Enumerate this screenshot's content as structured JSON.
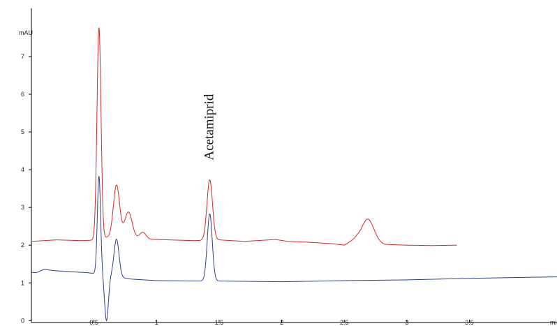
{
  "chart_data": {
    "type": "line",
    "title": "",
    "xlabel": "",
    "ylabel": "",
    "y_unit_label": "mAU",
    "x_unit_label": "mi",
    "xlim": [
      0,
      4.2
    ],
    "ylim": [
      -0.05,
      8.35
    ],
    "x_ticks": [
      {
        "value": 0.5,
        "label": "0.5"
      },
      {
        "value": 1,
        "label": "1"
      },
      {
        "value": 1.5,
        "label": "1.5"
      },
      {
        "value": 2,
        "label": "2"
      },
      {
        "value": 2.5,
        "label": "2.5"
      },
      {
        "value": 3,
        "label": "3"
      },
      {
        "value": 3.5,
        "label": "3.5"
      }
    ],
    "y_ticks": [
      {
        "value": 0,
        "label": "0"
      },
      {
        "value": 1,
        "label": "1"
      },
      {
        "value": 2,
        "label": "2"
      },
      {
        "value": 3,
        "label": "3"
      },
      {
        "value": 4,
        "label": "4"
      },
      {
        "value": 5,
        "label": "5"
      },
      {
        "value": 6,
        "label": "6"
      },
      {
        "value": 7,
        "label": "7"
      }
    ],
    "grid": false,
    "annotations": [
      {
        "text": "Acetamiprid",
        "x": 1.42,
        "y": 4.25,
        "rotation": -90
      }
    ],
    "series": [
      {
        "color": "#d42a2a",
        "baseline": [
          [
            0,
            2.1
          ],
          [
            0.1,
            2.12
          ],
          [
            0.2,
            2.14
          ],
          [
            0.3,
            2.13
          ],
          [
            0.4,
            2.12
          ],
          [
            0.48,
            2.13
          ],
          [
            0.6,
            2.2
          ],
          [
            1.0,
            2.15
          ],
          [
            1.3,
            2.12
          ],
          [
            1.5,
            2.14
          ],
          [
            1.7,
            2.1
          ],
          [
            1.95,
            2.15
          ],
          [
            2.05,
            2.1
          ],
          [
            2.2,
            2.08
          ],
          [
            2.4,
            2.04
          ],
          [
            2.5,
            2.0
          ],
          [
            2.55,
            2.1
          ],
          [
            2.6,
            2.2
          ],
          [
            2.75,
            2.1
          ],
          [
            2.82,
            2.02
          ],
          [
            3.0,
            2.0
          ],
          [
            3.2,
            1.99
          ],
          [
            3.4,
            2.0
          ]
        ],
        "peaks": [
          {
            "x": 0.54,
            "h": 5.6,
            "w": 0.016
          },
          {
            "x": 0.68,
            "h": 1.4,
            "w": 0.025
          },
          {
            "x": 0.775,
            "h": 0.7,
            "w": 0.03
          },
          {
            "x": 0.89,
            "h": 0.18,
            "w": 0.025
          },
          {
            "x": 1.425,
            "h": 1.6,
            "w": 0.022
          },
          {
            "x": 2.69,
            "h": 0.55,
            "w": 0.045
          }
        ],
        "dips": [],
        "x_end": 3.4
      },
      {
        "color": "#2c3f8c",
        "baseline": [
          [
            0,
            1.28
          ],
          [
            0.04,
            1.27
          ],
          [
            0.1,
            1.36
          ],
          [
            0.2,
            1.32
          ],
          [
            0.3,
            1.3
          ],
          [
            0.45,
            1.27
          ],
          [
            0.5,
            1.25
          ],
          [
            0.8,
            1.1
          ],
          [
            1.0,
            1.06
          ],
          [
            1.3,
            1.05
          ],
          [
            1.5,
            1.05
          ],
          [
            2.0,
            1.03
          ],
          [
            2.5,
            1.06
          ],
          [
            3.0,
            1.08
          ],
          [
            3.5,
            1.12
          ],
          [
            4.0,
            1.15
          ],
          [
            4.2,
            1.16
          ]
        ],
        "peaks": [
          {
            "x": 0.54,
            "h": 2.6,
            "w": 0.013
          },
          {
            "x": 0.68,
            "h": 1.0,
            "w": 0.02
          },
          {
            "x": 1.425,
            "h": 1.78,
            "w": 0.02
          }
        ],
        "dips": [
          {
            "x": 0.6,
            "h": 1.2,
            "w": 0.015
          }
        ],
        "x_end": 4.2
      }
    ]
  }
}
